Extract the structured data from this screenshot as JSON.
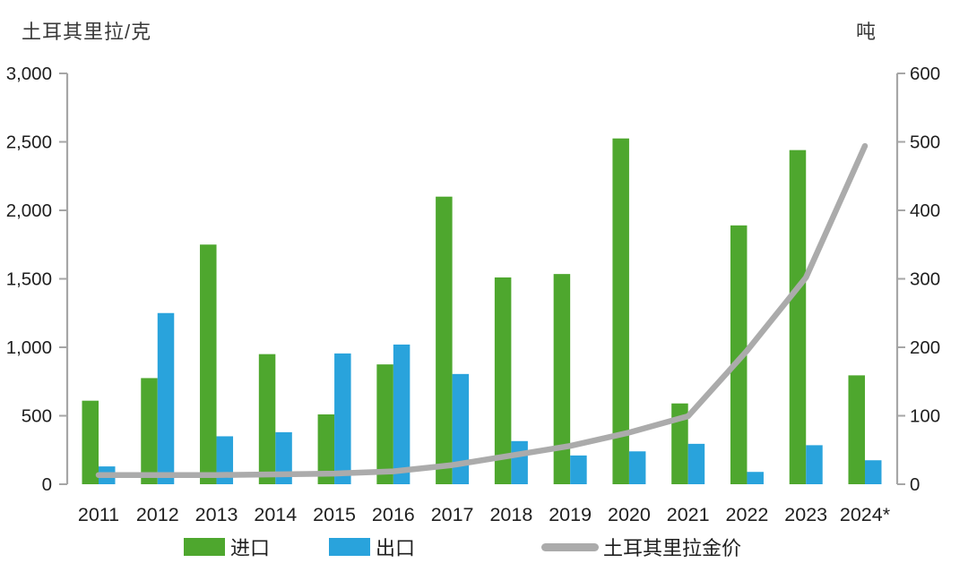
{
  "page": {
    "background": "#FFFFFF"
  },
  "colors": {
    "import_green": "#4EA72E",
    "export_blue": "#29A3DC",
    "price_gray": "#ABABAB",
    "axis_line_gray": "#A6A6A6",
    "tick_text": "#1F1F1F",
    "axis_title_text": "#3A3A3A"
  },
  "chart_data": {
    "type": "bar",
    "subtype": "grouped-bars-with-line",
    "title": "",
    "grid": false,
    "legend_position": "bottom",
    "left_axis": {
      "title": "土耳其里拉/克",
      "min": 0,
      "max": 3000,
      "tick_values": [
        3000,
        2500,
        2000,
        1500,
        1000,
        500,
        0
      ],
      "tick_labels": [
        "3,000",
        "2,500",
        "2,000",
        "1,500",
        "1,000",
        "500",
        "0"
      ]
    },
    "right_axis": {
      "title": "吨",
      "min": 0,
      "max": 600,
      "tick_values": [
        600,
        500,
        400,
        300,
        200,
        100,
        0
      ],
      "tick_labels": [
        "600",
        "500",
        "400",
        "300",
        "200",
        "100",
        "0"
      ]
    },
    "categories": [
      "2011",
      "2012",
      "2013",
      "2014",
      "2015",
      "2016",
      "2017",
      "2018",
      "2019",
      "2020",
      "2021",
      "2022",
      "2023",
      "2024*"
    ],
    "series": [
      {
        "name": "进口",
        "type": "bar",
        "axis": "right",
        "color": "#4EA72E",
        "values": [
          122,
          155,
          350,
          190,
          102,
          175,
          420,
          302,
          307,
          505,
          118,
          378,
          488,
          159
        ]
      },
      {
        "name": "出口",
        "type": "bar",
        "axis": "right",
        "color": "#29A3DC",
        "values": [
          26,
          250,
          70,
          76,
          191,
          204,
          161,
          63,
          42,
          48,
          59,
          18,
          57,
          35
        ]
      },
      {
        "name": "土耳其里拉金价",
        "type": "line",
        "axis": "left",
        "color": "#ABABAB",
        "values": [
          67,
          67,
          67,
          72,
          78,
          94,
          140,
          210,
          280,
          377,
          497,
          975,
          1510,
          2470
        ]
      }
    ]
  }
}
